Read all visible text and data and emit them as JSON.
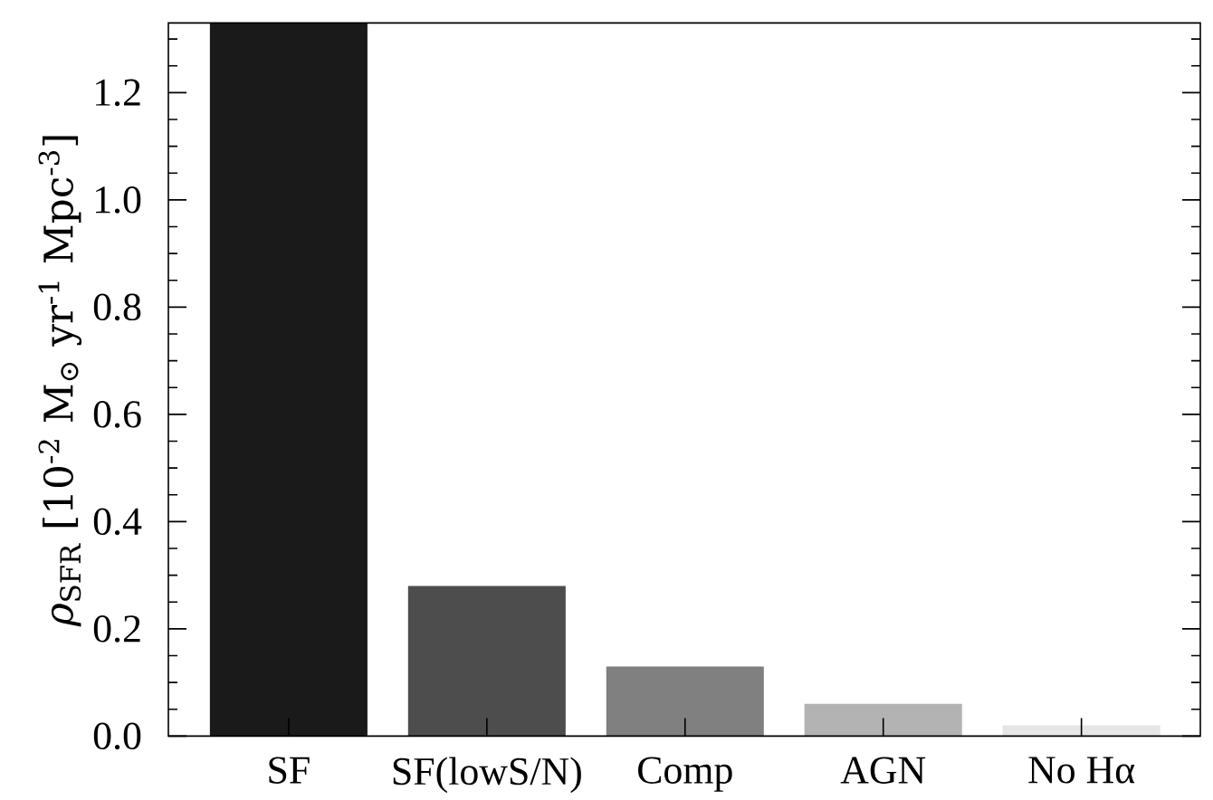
{
  "chart_data": {
    "type": "bar",
    "categories": [
      "SF",
      "SF(lowS/N)",
      "Comp",
      "AGN",
      "No Hα"
    ],
    "values": [
      1.33,
      0.28,
      0.13,
      0.06,
      0.02
    ],
    "colors": [
      "#1a1a1a",
      "#4d4d4d",
      "#808080",
      "#b3b3b3",
      "#e6e6e6"
    ],
    "ylabel": "*ρ*$_{SFR}$ [10$^{-2}$ M$_{⊙}$ yr$^{-1}$ Mpc$^{-3}$]",
    "ylim": [
      0,
      1.33
    ],
    "yticks": [
      {
        "value": 0,
        "label": "0.0"
      },
      {
        "value": 0.05,
        "label": null
      },
      {
        "value": 0.1,
        "label": null
      },
      {
        "value": 0.15,
        "label": null
      },
      0.2,
      {
        "value": 0.25,
        "label": null
      },
      {
        "value": 0.3,
        "label": null
      },
      {
        "value": 0.35,
        "label": null
      },
      0.4,
      {
        "value": 0.45,
        "label": null
      },
      {
        "value": 0.5,
        "label": null
      },
      {
        "value": 0.55,
        "label": null
      },
      0.6,
      {
        "value": 0.65,
        "label": null
      },
      {
        "value": 0.7,
        "label": null
      },
      {
        "value": 0.75,
        "label": null
      },
      0.8,
      {
        "value": 0.85,
        "label": null
      },
      {
        "value": 0.9,
        "label": null
      },
      {
        "value": 0.95,
        "label": null
      },
      {
        "value": 1,
        "label": "1.0"
      },
      {
        "value": 1.05,
        "label": null
      },
      {
        "value": 1.1,
        "label": null
      },
      {
        "value": 1.15,
        "label": null
      },
      1.2,
      {
        "value": 1.25,
        "label": null
      },
      {
        "value": 1.3,
        "label": null
      }
    ]
  }
}
